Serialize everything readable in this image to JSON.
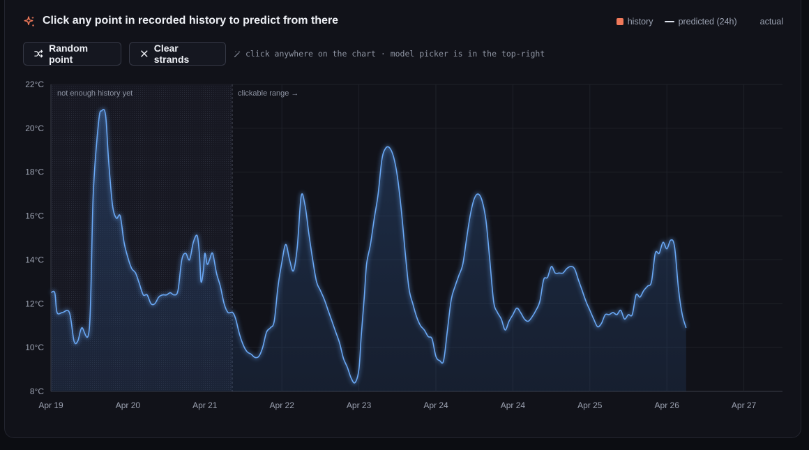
{
  "header": {
    "title": "Click any point in recorded history to predict from there",
    "icon": "sparkle-icon",
    "accent": "#f0795a"
  },
  "legend": {
    "history": "history",
    "predicted": "predicted (24h)",
    "actual": "actual"
  },
  "toolbar": {
    "random_label": "Random point",
    "clear_label": "Clear strands",
    "hint": "click anywhere on the chart · model picker is in the top-right"
  },
  "chart_data": {
    "type": "line",
    "ylim": [
      8,
      22
    ],
    "y_ticks": [
      "8°C",
      "10°C",
      "12°C",
      "14°C",
      "16°C",
      "18°C",
      "20°C",
      "22°C"
    ],
    "x_range_days": [
      19,
      28
    ],
    "x_ticks": [
      "Apr 19",
      "Apr 20",
      "Apr 21",
      "Apr 22",
      "Apr 23",
      "Apr 24",
      "Apr 24",
      "Apr 25",
      "Apr 26",
      "Apr 27"
    ],
    "regions": {
      "insufficient_label": "not enough history yet",
      "clickable_label": "clickable range →",
      "insufficient_end": "Apr 21 ~08:00"
    },
    "line_color": "#6aa8f5",
    "series": [
      {
        "values": [
          [
            19.0,
            12.5
          ],
          [
            19.05,
            12.5
          ],
          [
            19.08,
            11.6
          ],
          [
            19.15,
            11.6
          ],
          [
            19.24,
            11.6
          ],
          [
            19.3,
            10.3
          ],
          [
            19.35,
            10.3
          ],
          [
            19.4,
            10.9
          ],
          [
            19.5,
            10.9
          ],
          [
            19.55,
            17.0
          ],
          [
            19.62,
            20.3
          ],
          [
            19.66,
            20.8
          ],
          [
            19.71,
            20.6
          ],
          [
            19.75,
            18.5
          ],
          [
            19.8,
            16.5
          ],
          [
            19.85,
            15.9
          ],
          [
            19.9,
            16.0
          ],
          [
            19.95,
            14.8
          ],
          [
            20.0,
            14.1
          ],
          [
            20.05,
            13.6
          ],
          [
            20.1,
            13.4
          ],
          [
            20.15,
            12.9
          ],
          [
            20.2,
            12.4
          ],
          [
            20.25,
            12.4
          ],
          [
            20.3,
            12.0
          ],
          [
            20.35,
            12.0
          ],
          [
            20.4,
            12.3
          ],
          [
            20.45,
            12.4
          ],
          [
            20.5,
            12.4
          ],
          [
            20.55,
            12.5
          ],
          [
            20.6,
            12.4
          ],
          [
            20.65,
            12.6
          ],
          [
            20.7,
            14.0
          ],
          [
            20.75,
            14.3
          ],
          [
            20.8,
            14.0
          ],
          [
            20.85,
            14.8
          ],
          [
            20.9,
            15.1
          ],
          [
            20.93,
            14.2
          ],
          [
            20.95,
            13.0
          ],
          [
            20.98,
            13.5
          ],
          [
            21.0,
            14.3
          ],
          [
            21.03,
            13.8
          ],
          [
            21.06,
            14.0
          ],
          [
            21.1,
            14.3
          ],
          [
            21.15,
            13.4
          ],
          [
            21.2,
            12.8
          ],
          [
            21.25,
            12.0
          ],
          [
            21.3,
            11.6
          ],
          [
            21.36,
            11.6
          ],
          [
            21.4,
            11.3
          ],
          [
            21.45,
            10.6
          ],
          [
            21.5,
            10.1
          ],
          [
            21.55,
            9.8
          ],
          [
            21.6,
            9.7
          ],
          [
            21.65,
            9.55
          ],
          [
            21.7,
            9.6
          ],
          [
            21.75,
            10.0
          ],
          [
            21.8,
            10.7
          ],
          [
            21.85,
            10.9
          ],
          [
            21.9,
            11.2
          ],
          [
            21.95,
            12.8
          ],
          [
            22.0,
            13.9
          ],
          [
            22.05,
            14.7
          ],
          [
            22.1,
            14.0
          ],
          [
            22.15,
            13.5
          ],
          [
            22.2,
            14.6
          ],
          [
            22.25,
            16.9
          ],
          [
            22.3,
            16.5
          ],
          [
            22.35,
            15.2
          ],
          [
            22.4,
            14.0
          ],
          [
            22.45,
            13.0
          ],
          [
            22.5,
            12.6
          ],
          [
            22.55,
            12.2
          ],
          [
            22.6,
            11.7
          ],
          [
            22.65,
            11.2
          ],
          [
            22.7,
            10.7
          ],
          [
            22.75,
            10.2
          ],
          [
            22.8,
            9.5
          ],
          [
            22.85,
            9.1
          ],
          [
            22.9,
            8.6
          ],
          [
            22.95,
            8.4
          ],
          [
            23.0,
            9.0
          ],
          [
            23.03,
            10.5
          ],
          [
            23.07,
            12.3
          ],
          [
            23.1,
            13.8
          ],
          [
            23.15,
            14.7
          ],
          [
            23.2,
            15.9
          ],
          [
            23.25,
            17.0
          ],
          [
            23.3,
            18.6
          ],
          [
            23.35,
            19.1
          ],
          [
            23.4,
            19.1
          ],
          [
            23.45,
            18.7
          ],
          [
            23.5,
            17.8
          ],
          [
            23.55,
            16.3
          ],
          [
            23.6,
            14.4
          ],
          [
            23.65,
            12.7
          ],
          [
            23.7,
            12.0
          ],
          [
            23.75,
            11.4
          ],
          [
            23.8,
            11.0
          ],
          [
            23.85,
            10.8
          ],
          [
            23.9,
            10.5
          ],
          [
            23.95,
            10.4
          ],
          [
            24.0,
            9.6
          ],
          [
            24.05,
            9.4
          ],
          [
            24.1,
            9.4
          ],
          [
            24.15,
            10.8
          ],
          [
            24.2,
            12.2
          ],
          [
            24.25,
            12.8
          ],
          [
            24.3,
            13.3
          ],
          [
            24.35,
            13.8
          ],
          [
            24.4,
            15.0
          ],
          [
            24.45,
            16.1
          ],
          [
            24.5,
            16.8
          ],
          [
            24.55,
            17.0
          ],
          [
            24.6,
            16.7
          ],
          [
            24.65,
            15.8
          ],
          [
            24.7,
            14.0
          ],
          [
            24.75,
            12.1
          ],
          [
            24.8,
            11.6
          ],
          [
            24.85,
            11.3
          ],
          [
            24.9,
            10.8
          ],
          [
            24.95,
            11.2
          ],
          [
            25.0,
            11.5
          ],
          [
            25.05,
            11.8
          ],
          [
            25.1,
            11.6
          ],
          [
            25.15,
            11.3
          ],
          [
            25.2,
            11.2
          ],
          [
            25.25,
            11.4
          ],
          [
            25.3,
            11.7
          ],
          [
            25.35,
            12.1
          ],
          [
            25.4,
            13.1
          ],
          [
            25.45,
            13.2
          ],
          [
            25.5,
            13.7
          ],
          [
            25.55,
            13.4
          ],
          [
            25.6,
            13.4
          ],
          [
            25.65,
            13.4
          ],
          [
            25.7,
            13.6
          ],
          [
            25.75,
            13.7
          ],
          [
            25.8,
            13.6
          ],
          [
            25.85,
            13.1
          ],
          [
            25.9,
            12.6
          ],
          [
            25.95,
            12.1
          ],
          [
            26.0,
            11.7
          ],
          [
            26.05,
            11.3
          ],
          [
            26.1,
            10.95
          ],
          [
            26.15,
            11.1
          ],
          [
            26.2,
            11.5
          ],
          [
            26.25,
            11.5
          ],
          [
            26.3,
            11.6
          ],
          [
            26.35,
            11.5
          ],
          [
            26.4,
            11.7
          ],
          [
            26.45,
            11.3
          ],
          [
            26.5,
            11.5
          ],
          [
            26.55,
            11.5
          ],
          [
            26.6,
            12.4
          ],
          [
            26.65,
            12.3
          ],
          [
            26.7,
            12.6
          ],
          [
            26.75,
            12.8
          ],
          [
            26.8,
            13.0
          ],
          [
            26.85,
            14.3
          ],
          [
            26.9,
            14.3
          ],
          [
            26.95,
            14.8
          ],
          [
            27.0,
            14.5
          ],
          [
            27.05,
            14.9
          ],
          [
            27.1,
            14.6
          ],
          [
            27.15,
            12.7
          ],
          [
            27.2,
            11.5
          ],
          [
            27.25,
            10.9
          ]
        ]
      }
    ]
  }
}
